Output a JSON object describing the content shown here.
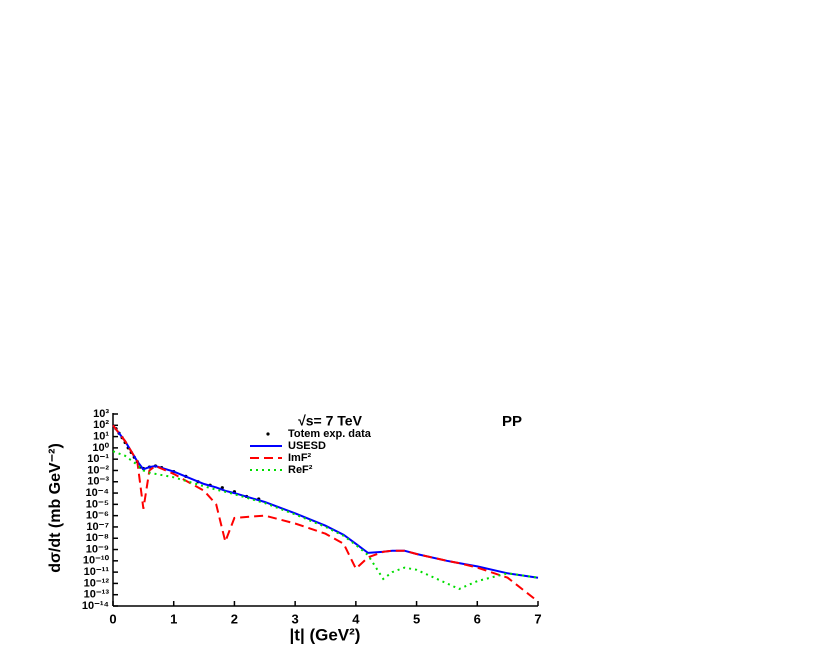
{
  "chart_data": {
    "type": "line",
    "title": "√s= 7 TeV",
    "annotation": "PP",
    "x_label": "|t| (GeV²)",
    "y_label": "dσ/dt (mb GeV⁻²)",
    "log_y": true,
    "legend": "top center",
    "x": [
      0,
      0.2,
      0.4,
      0.5,
      0.6,
      0.7,
      1,
      1.5,
      1.7,
      1.85,
      2,
      2.5,
      3,
      3.5,
      3.8,
      4,
      4.2,
      4.45,
      4.6,
      4.8,
      5,
      5.5,
      5.7,
      6,
      6.5,
      7
    ],
    "series": [
      {
        "name": "Totem exp. data",
        "color": "#000000",
        "style": "points",
        "x": [
          0.05,
          0.1,
          0.15,
          0.2,
          0.25,
          0.3,
          0.35,
          0.4,
          0.45,
          0.5,
          0.6,
          0.7,
          0.8,
          1.0,
          1.2,
          1.4,
          1.6,
          1.8,
          2.0,
          2.2,
          2.4
        ],
        "values": [
          50,
          20,
          8,
          3,
          1,
          0.4,
          0.15,
          0.06,
          0.02,
          0.015,
          0.02,
          0.025,
          0.018,
          0.008,
          0.003,
          0.001,
          0.0005,
          0.0003,
          0.00013,
          5e-05,
          3e-05
        ]
      },
      {
        "name": "USESD",
        "color": "#0000ff",
        "style": "solid",
        "values": [
          100,
          4,
          0.063,
          0.0126,
          0.02,
          0.025,
          0.0079,
          0.00063,
          0.00032,
          0.00016,
          0.0001,
          1.6e-05,
          1.6e-06,
          1.3e-07,
          2e-08,
          3.2e-09,
          5e-10,
          6.3e-10,
          7.9e-10,
          7.9e-10,
          4e-10,
          1e-10,
          6.3e-11,
          3.2e-11,
          7.9e-12,
          3.2e-12
        ]
      },
      {
        "name": "ImF²",
        "color": "#ff0000",
        "style": "dashed",
        "values": [
          100,
          4,
          0.063,
          4e-06,
          0.01,
          0.025,
          0.005,
          0.00016,
          1e-05,
          5e-09,
          6.3e-07,
          1e-06,
          2e-07,
          2.5e-08,
          3.2e-09,
          2e-11,
          2e-10,
          6.3e-10,
          7.9e-10,
          7.9e-10,
          4e-10,
          1e-10,
          6.3e-11,
          2.5e-11,
          3.2e-12,
          2.5e-14
        ]
      },
      {
        "name": "ReF²",
        "color": "#00dd00",
        "style": "dotted",
        "values": [
          0.5,
          0.2,
          0.032,
          0.01,
          0.0063,
          0.005,
          0.0025,
          0.0004,
          0.0002,
          0.00013,
          7.9e-05,
          1.3e-05,
          1.3e-06,
          1e-07,
          1.6e-08,
          2.5e-09,
          3.2e-10,
          2.5e-12,
          1e-11,
          2.5e-11,
          1.6e-11,
          1e-12,
          3.2e-13,
          1.6e-12,
          7.9e-12,
          3.2e-12
        ]
      }
    ],
    "xlim": [
      0,
      7
    ],
    "xticks": [
      0,
      1,
      2,
      3,
      4,
      5,
      6,
      7
    ],
    "ylim": [
      1e-14,
      1000
    ],
    "yticks": [
      {
        "value": 1000,
        "label": "10³"
      },
      {
        "value": 100,
        "label": "10²"
      },
      {
        "value": 10,
        "label": "10¹"
      },
      {
        "value": 1,
        "label": "10⁰"
      },
      {
        "value": 0.1,
        "label": "10⁻¹"
      },
      {
        "value": 0.01,
        "label": "10⁻²"
      },
      {
        "value": 0.001,
        "label": "10⁻³"
      },
      {
        "value": 0.0001,
        "label": "10⁻⁴"
      },
      {
        "value": 1e-05,
        "label": "10⁻⁵"
      },
      {
        "value": 1e-06,
        "label": "10⁻⁶"
      },
      {
        "value": 1e-07,
        "label": "10⁻⁷"
      },
      {
        "value": 1e-08,
        "label": "10⁻⁸"
      },
      {
        "value": 1e-09,
        "label": "10⁻⁹"
      },
      {
        "value": 1e-10,
        "label": "10⁻¹⁰"
      },
      {
        "value": 1e-11,
        "label": "10⁻¹¹"
      },
      {
        "value": 1e-12,
        "label": "10⁻¹²"
      },
      {
        "value": 1e-13,
        "label": "10⁻¹³"
      },
      {
        "value": 1e-14,
        "label": "10⁻¹⁴"
      }
    ]
  }
}
